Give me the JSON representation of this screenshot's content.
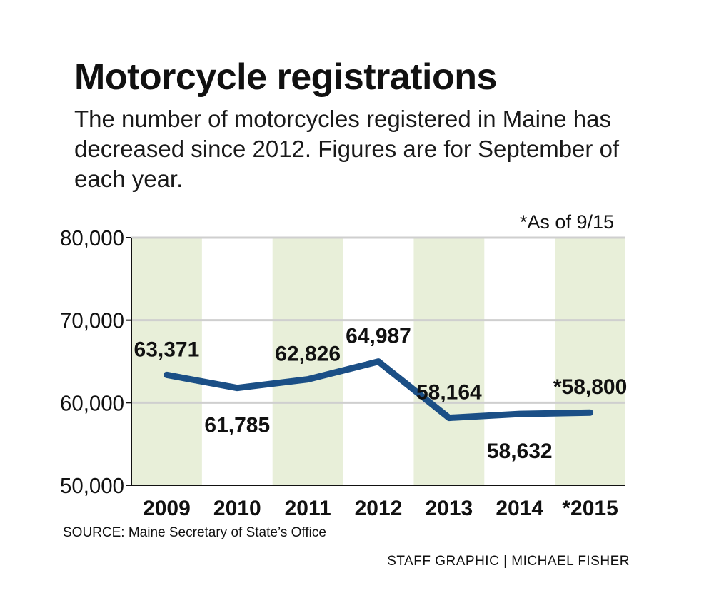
{
  "title": "Motorcycle registrations",
  "subtitle": "The number of motorcycles registered in Maine has decreased since 2012. Figures are for September of each year.",
  "note": "*As of 9/15",
  "source": "SOURCE: Maine Secretary of State’s Office",
  "credit": "STAFF GRAPHIC | MICHAEL FISHER",
  "colors": {
    "line": "#1b4f86",
    "band": "#e8efd9",
    "grid": "#cfcfcf",
    "axis": "#111111"
  },
  "chart_data": {
    "type": "line",
    "categories": [
      "2009",
      "2010",
      "2011",
      "2012",
      "2013",
      "2014",
      "*2015"
    ],
    "series": [
      {
        "values": [
          63371,
          61785,
          62826,
          64987,
          58164,
          58632,
          58800
        ]
      }
    ],
    "data_labels": [
      "63,371",
      "61,785",
      "62,826",
      "64,987",
      "58,164",
      "58,632",
      "*58,800"
    ],
    "ylim": [
      50000,
      80000
    ],
    "yticks": [
      50000,
      60000,
      70000,
      80000
    ],
    "ytick_labels": [
      "50,000",
      "60,000",
      "70,000",
      "80,000"
    ],
    "grid": true,
    "alternating_bands": true
  }
}
